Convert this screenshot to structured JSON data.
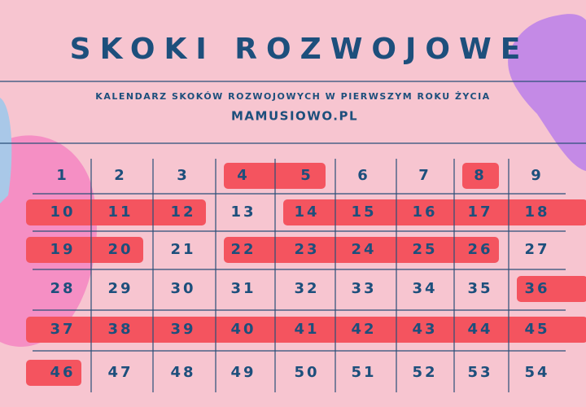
{
  "header": {
    "title": "SKOKI ROZWOJOWE",
    "subtitle": "KALENDARZ SKOKÓW ROZWOJOWYCH W PIERWSZYM ROKU ŻYCIA",
    "site": "MAMUSIOWO.PL"
  },
  "table": {
    "highlight_color": "#f4545f",
    "rows": [
      [
        {
          "label": 1,
          "highlighted": false
        },
        {
          "label": 2,
          "highlighted": false
        },
        {
          "label": 3,
          "highlighted": false
        },
        {
          "label": 4,
          "highlighted": true
        },
        {
          "label": 5,
          "highlighted": true
        },
        {
          "label": 6,
          "highlighted": false
        },
        {
          "label": 7,
          "highlighted": false
        },
        {
          "label": 8,
          "highlighted": true
        },
        {
          "label": 9,
          "highlighted": false
        }
      ],
      [
        {
          "label": 10,
          "highlighted": true
        },
        {
          "label": 11,
          "highlighted": true
        },
        {
          "label": 12,
          "highlighted": true
        },
        {
          "label": 13,
          "highlighted": false
        },
        {
          "label": 14,
          "highlighted": true
        },
        {
          "label": 15,
          "highlighted": true
        },
        {
          "label": 16,
          "highlighted": true
        },
        {
          "label": 17,
          "highlighted": true
        },
        {
          "label": 18,
          "highlighted": true
        }
      ],
      [
        {
          "label": 19,
          "highlighted": true
        },
        {
          "label": 20,
          "highlighted": true
        },
        {
          "label": 21,
          "highlighted": false
        },
        {
          "label": 22,
          "highlighted": true
        },
        {
          "label": 23,
          "highlighted": true
        },
        {
          "label": 24,
          "highlighted": true
        },
        {
          "label": 25,
          "highlighted": true
        },
        {
          "label": 26,
          "highlighted": true
        },
        {
          "label": 27,
          "highlighted": false
        }
      ],
      [
        {
          "label": 28,
          "highlighted": false
        },
        {
          "label": 29,
          "highlighted": false
        },
        {
          "label": 30,
          "highlighted": false
        },
        {
          "label": 31,
          "highlighted": false
        },
        {
          "label": 32,
          "highlighted": false
        },
        {
          "label": 33,
          "highlighted": false
        },
        {
          "label": 34,
          "highlighted": false
        },
        {
          "label": 35,
          "highlighted": false
        },
        {
          "label": 36,
          "highlighted": true
        }
      ],
      [
        {
          "label": 37,
          "highlighted": true
        },
        {
          "label": 38,
          "highlighted": true
        },
        {
          "label": 39,
          "highlighted": true
        },
        {
          "label": 40,
          "highlighted": true
        },
        {
          "label": 41,
          "highlighted": true
        },
        {
          "label": 42,
          "highlighted": true
        },
        {
          "label": 43,
          "highlighted": true
        },
        {
          "label": 44,
          "highlighted": true
        },
        {
          "label": 45,
          "highlighted": true
        }
      ],
      [
        {
          "label": 46,
          "highlighted": true
        },
        {
          "label": 47,
          "highlighted": false
        },
        {
          "label": 48,
          "highlighted": false
        },
        {
          "label": 49,
          "highlighted": false
        },
        {
          "label": 50,
          "highlighted": false
        },
        {
          "label": 51,
          "highlighted": false
        },
        {
          "label": 52,
          "highlighted": false
        },
        {
          "label": 53,
          "highlighted": false
        },
        {
          "label": 54,
          "highlighted": false
        }
      ]
    ]
  }
}
